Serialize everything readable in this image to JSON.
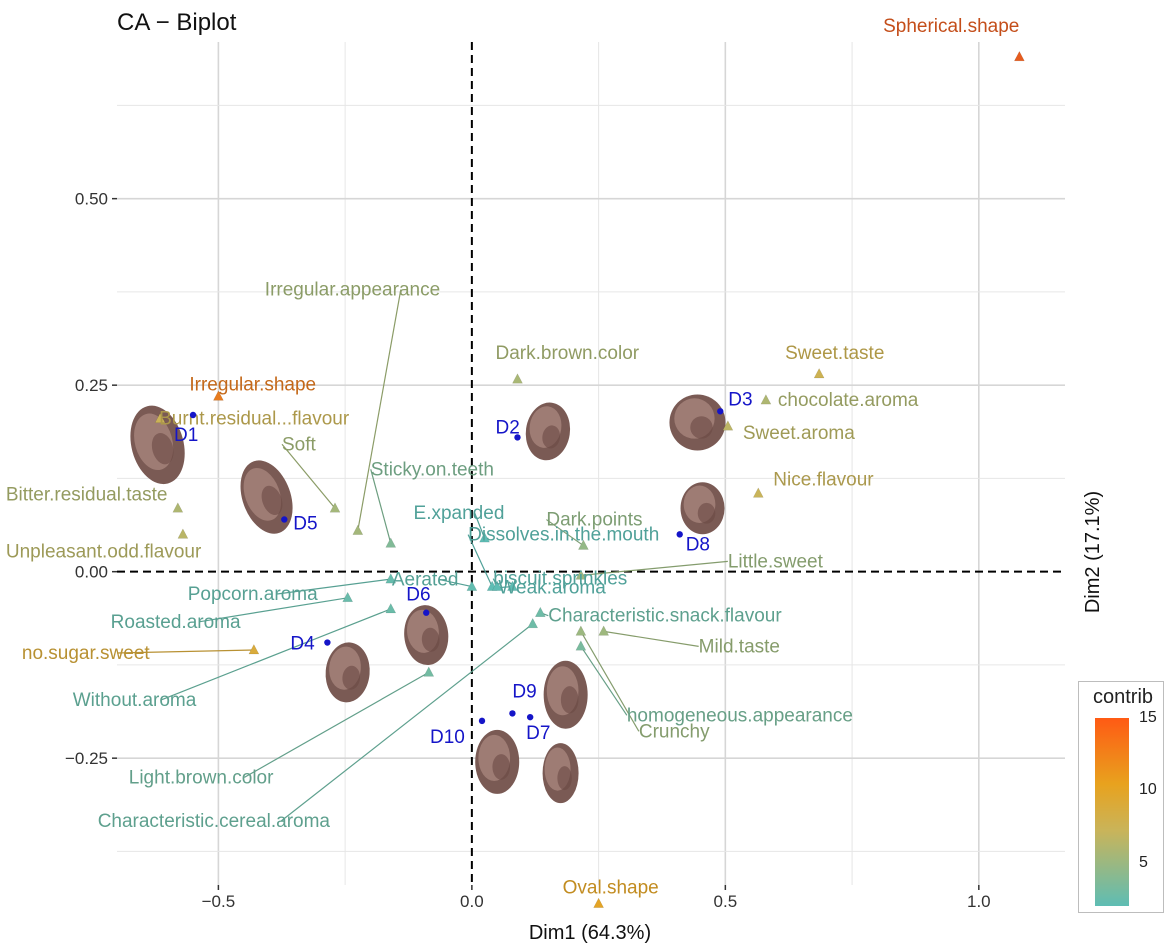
{
  "title": "CA − Biplot",
  "chart_data": {
    "type": "scatter",
    "title": "CA − Biplot",
    "xlabel": "Dim1 (64.3%)",
    "ylabel": "Dim2 (17.1%)",
    "xlim": [
      -0.7,
      1.17
    ],
    "ylim": [
      -0.42,
      0.71
    ],
    "x_ticks": [
      {
        "value": -0.5,
        "label": "−0.5"
      },
      {
        "value": 0.0,
        "label": "0.0"
      },
      {
        "value": 0.5,
        "label": "0.5"
      },
      {
        "value": 1.0,
        "label": "1.0"
      }
    ],
    "y_ticks": [
      {
        "value": 0.5,
        "label": "0.50"
      },
      {
        "value": 0.25,
        "label": "0.25"
      },
      {
        "value": 0.0,
        "label": "0.00"
      },
      {
        "value": -0.25,
        "label": "−0.25"
      }
    ],
    "grid": true,
    "reference_lines": [
      {
        "axis": "x",
        "value": 0
      },
      {
        "axis": "y",
        "value": 0
      }
    ],
    "row_points": [
      {
        "label": "D1",
        "x": -0.55,
        "y": 0.21
      },
      {
        "label": "D2",
        "x": 0.09,
        "y": 0.18
      },
      {
        "label": "D3",
        "x": 0.49,
        "y": 0.215
      },
      {
        "label": "D4",
        "x": -0.285,
        "y": -0.095
      },
      {
        "label": "D5",
        "x": -0.37,
        "y": 0.07
      },
      {
        "label": "D6",
        "x": -0.09,
        "y": -0.055
      },
      {
        "label": "D7",
        "x": 0.115,
        "y": -0.195
      },
      {
        "label": "D8",
        "x": 0.41,
        "y": 0.05
      },
      {
        "label": "D9",
        "x": 0.08,
        "y": -0.19
      },
      {
        "label": "D10",
        "x": 0.02,
        "y": -0.2
      }
    ],
    "column_points": [
      {
        "label": "Spherical.shape",
        "x": 1.08,
        "y": 0.69,
        "contrib": 14.5
      },
      {
        "label": "Irregular.shape",
        "x": -0.5,
        "y": 0.235,
        "contrib": 12.5
      },
      {
        "label": "Oval.shape",
        "x": 0.25,
        "y": -0.445,
        "contrib": 9.5
      },
      {
        "label": "no.sugar.sweet",
        "x": -0.43,
        "y": -0.105,
        "contrib": 8.0
      },
      {
        "label": "Sweet.taste",
        "x": 0.685,
        "y": 0.265,
        "contrib": 6.5
      },
      {
        "label": "Burnt.residual...flavour",
        "x": -0.615,
        "y": 0.205,
        "contrib": 6.2
      },
      {
        "label": "Nice.flavour",
        "x": 0.565,
        "y": 0.105,
        "contrib": 6.0
      },
      {
        "label": "Sweet.aroma",
        "x": 0.505,
        "y": 0.195,
        "contrib": 5.5
      },
      {
        "label": "Unpleasant.odd.flavour",
        "x": -0.57,
        "y": 0.05,
        "contrib": 5.4
      },
      {
        "label": "Bitter.residual.taste",
        "x": -0.58,
        "y": 0.085,
        "contrib": 5.0
      },
      {
        "label": "chocolate.aroma",
        "x": 0.58,
        "y": 0.23,
        "contrib": 5.0
      },
      {
        "label": "Dark.brown.color",
        "x": 0.09,
        "y": 0.258,
        "contrib": 4.8
      },
      {
        "label": "Irregular.appearance",
        "x": -0.225,
        "y": 0.055,
        "contrib": 4.6
      },
      {
        "label": "Soft",
        "x": -0.27,
        "y": 0.085,
        "contrib": 4.6
      },
      {
        "label": "Mild.taste",
        "x": 0.26,
        "y": -0.08,
        "contrib": 4.4
      },
      {
        "label": "Little.sweet",
        "x": 0.215,
        "y": -0.005,
        "contrib": 4.3
      },
      {
        "label": "Crunchy",
        "x": 0.215,
        "y": -0.08,
        "contrib": 4.3
      },
      {
        "label": "Dark.points",
        "x": 0.22,
        "y": 0.035,
        "contrib": 4.0
      },
      {
        "label": "Sticky.on.teeth",
        "x": -0.16,
        "y": 0.038,
        "contrib": 3.3
      },
      {
        "label": "homogeneous.appearance",
        "x": 0.215,
        "y": -0.1,
        "contrib": 3.0
      },
      {
        "label": "Light.brown.color",
        "x": -0.085,
        "y": -0.135,
        "contrib": 2.8
      },
      {
        "label": "Characteristic.snack.flavour",
        "x": 0.135,
        "y": -0.055,
        "contrib": 2.6
      },
      {
        "label": "Characteristic.cereal.aroma",
        "x": 0.12,
        "y": -0.07,
        "contrib": 2.6
      },
      {
        "label": "Without.aroma",
        "x": -0.16,
        "y": -0.05,
        "contrib": 2.5
      },
      {
        "label": "Roasted.aroma",
        "x": -0.245,
        "y": -0.035,
        "contrib": 2.4
      },
      {
        "label": "Popcorn.aroma",
        "x": -0.16,
        "y": -0.01,
        "contrib": 2.3
      },
      {
        "label": "Aerated",
        "x": 0.0,
        "y": -0.02,
        "contrib": 2.2
      },
      {
        "label": "E.xpanded",
        "x": 0.025,
        "y": 0.045,
        "contrib": 2.0
      },
      {
        "label": "Dissolves.in.the.mouth",
        "x": 0.04,
        "y": -0.02,
        "contrib": 2.0
      },
      {
        "label": "biscuit.sprinkles",
        "x": 0.05,
        "y": -0.02,
        "contrib": 2.0
      },
      {
        "label": "Weak.aroma",
        "x": 0.08,
        "y": -0.02,
        "contrib": 2.0
      }
    ],
    "legend": {
      "title": "contrib",
      "position": "bottom-right",
      "min": 2,
      "max": 15,
      "ticks": [
        {
          "value": 5,
          "label": "5"
        },
        {
          "value": 10,
          "label": "10"
        },
        {
          "value": 15,
          "label": "15"
        }
      ],
      "colors": [
        "#5ebdb4",
        "#c9b45a",
        "#e8a21e",
        "#ff5a14"
      ]
    },
    "row_point_color": "#1515c8"
  }
}
